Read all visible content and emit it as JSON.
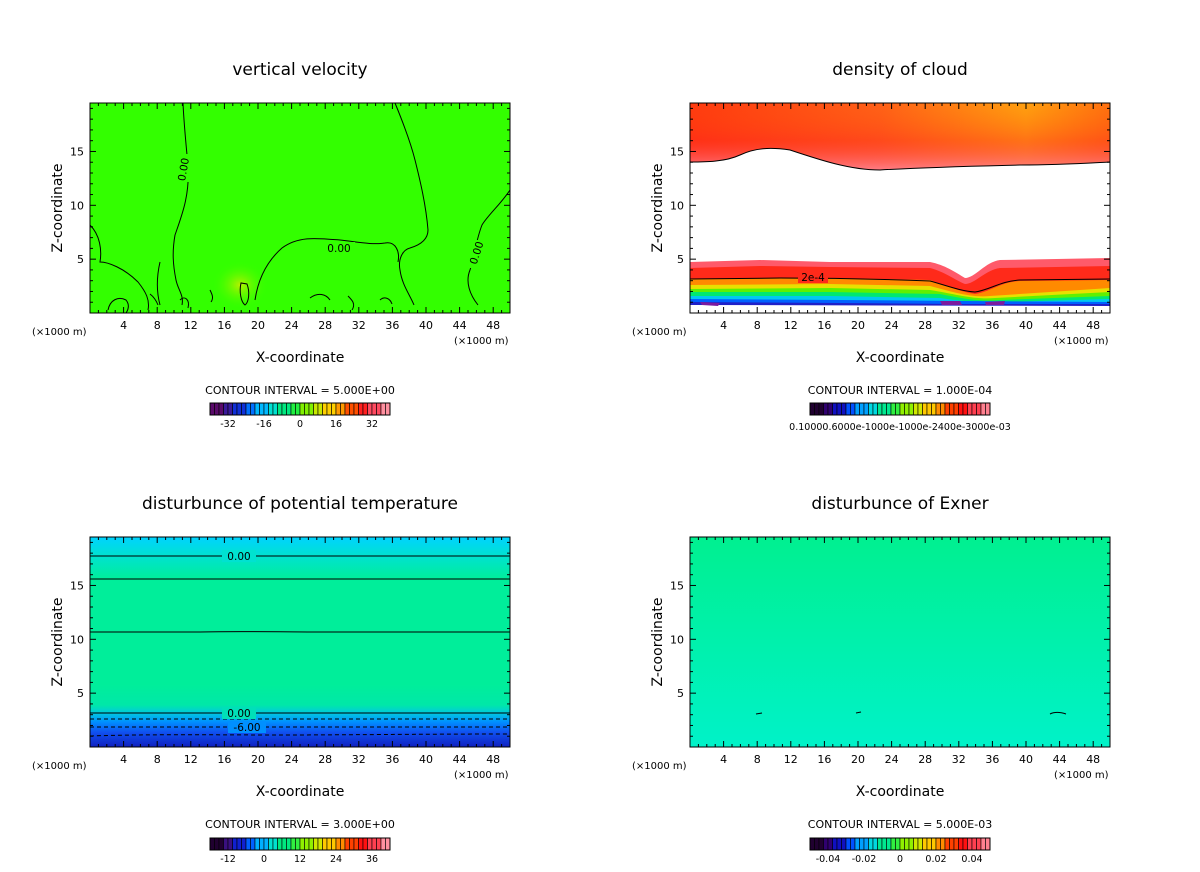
{
  "chart_data": [
    {
      "type": "heatmap",
      "title": "vertical velocity",
      "xlabel": "X-coordinate",
      "ylabel": "Z-coordinate",
      "x_unit_left": "(×1000 m)",
      "x_unit_right": "(×1000 m)",
      "xlim": [
        0,
        50
      ],
      "ylim": [
        0,
        19.5
      ],
      "x_ticks": [
        4,
        8,
        12,
        16,
        20,
        24,
        28,
        32,
        36,
        40,
        44,
        48
      ],
      "y_ticks": [
        5,
        10,
        15
      ],
      "field_color": "#33ff00",
      "contour_labels": [
        "0.00",
        "0.00",
        "0.00"
      ],
      "contour_interval": "CONTOUR INTERVAL = 5.000E+00",
      "colorbar_ticks": [
        "-32",
        "-16",
        "0",
        "16",
        "32"
      ],
      "colormap": [
        "#5a0a6a",
        "#3a1a9a",
        "#1030d8",
        "#0070ff",
        "#00b8ff",
        "#00e0d0",
        "#00e880",
        "#20f040",
        "#80f000",
        "#c8e800",
        "#ffd000",
        "#ff9a00",
        "#ff5000",
        "#ff2020",
        "#ff4a60",
        "#ff90a0"
      ]
    },
    {
      "type": "heatmap",
      "title": "density of cloud",
      "xlabel": "X-coordinate",
      "ylabel": "Z-coordinate",
      "x_unit_left": "(×1000 m)",
      "x_unit_right": "(×1000 m)",
      "xlim": [
        0,
        50
      ],
      "ylim": [
        0,
        19.5
      ],
      "x_ticks": [
        4,
        8,
        12,
        16,
        20,
        24,
        28,
        32,
        36,
        40,
        44,
        48
      ],
      "y_ticks": [
        5,
        10,
        15
      ],
      "contour_labels": [
        "2e-4"
      ],
      "contour_interval": "CONTOUR INTERVAL = 1.000E-04",
      "colorbar_label": "0.10000.6000e-1000e-1000e-2400e-3000e-03",
      "colormap": [
        "#200030",
        "#300070",
        "#1010c0",
        "#0050ff",
        "#00a0ff",
        "#00d8e0",
        "#00e890",
        "#30f040",
        "#90f000",
        "#d0e800",
        "#ffc800",
        "#ff8c00",
        "#ff4000",
        "#ff1010",
        "#ff4050",
        "#ff8090"
      ]
    },
    {
      "type": "heatmap",
      "title": "disturbunce of potential temperature",
      "xlabel": "X-coordinate",
      "ylabel": "Z-coordinate",
      "x_unit_left": "(×1000 m)",
      "x_unit_right": "(×1000 m)",
      "xlim": [
        0,
        50
      ],
      "ylim": [
        0,
        19.5
      ],
      "x_ticks": [
        4,
        8,
        12,
        16,
        20,
        24,
        28,
        32,
        36,
        40,
        44,
        48
      ],
      "y_ticks": [
        5,
        10,
        15
      ],
      "contour_labels": [
        "0.00",
        "0.00",
        "-6.00"
      ],
      "contour_interval": "CONTOUR INTERVAL = 3.000E+00",
      "colorbar_ticks": [
        "-12",
        "0",
        "12",
        "24",
        "36"
      ],
      "colormap": [
        "#200030",
        "#3a1080",
        "#1020d0",
        "#0060ff",
        "#00b0ff",
        "#00e0d0",
        "#00e880",
        "#30f040",
        "#90f000",
        "#d0e800",
        "#ffc800",
        "#ff8c00",
        "#ff4000",
        "#ff1010",
        "#ff4050",
        "#ff90a0"
      ]
    },
    {
      "type": "heatmap",
      "title": "disturbunce of Exner",
      "xlabel": "X-coordinate",
      "ylabel": "Z-coordinate",
      "x_unit_left": "(×1000 m)",
      "x_unit_right": "(×1000 m)",
      "xlim": [
        0,
        50
      ],
      "ylim": [
        0,
        19.5
      ],
      "x_ticks": [
        4,
        8,
        12,
        16,
        20,
        24,
        28,
        32,
        36,
        40,
        44,
        48
      ],
      "y_ticks": [
        5,
        10,
        15
      ],
      "field_color": "#00ff90",
      "contour_interval": "CONTOUR INTERVAL = 5.000E-03",
      "colorbar_ticks": [
        "-0.04",
        "-0.02",
        "0",
        "0.02",
        "0.04"
      ],
      "colormap": [
        "#200030",
        "#300070",
        "#1010c0",
        "#0050ff",
        "#00a0ff",
        "#00d8e0",
        "#00e890",
        "#30f040",
        "#90f000",
        "#d0e800",
        "#ffc800",
        "#ff8c00",
        "#ff4000",
        "#ff1010",
        "#ff4050",
        "#ff8090"
      ]
    }
  ]
}
